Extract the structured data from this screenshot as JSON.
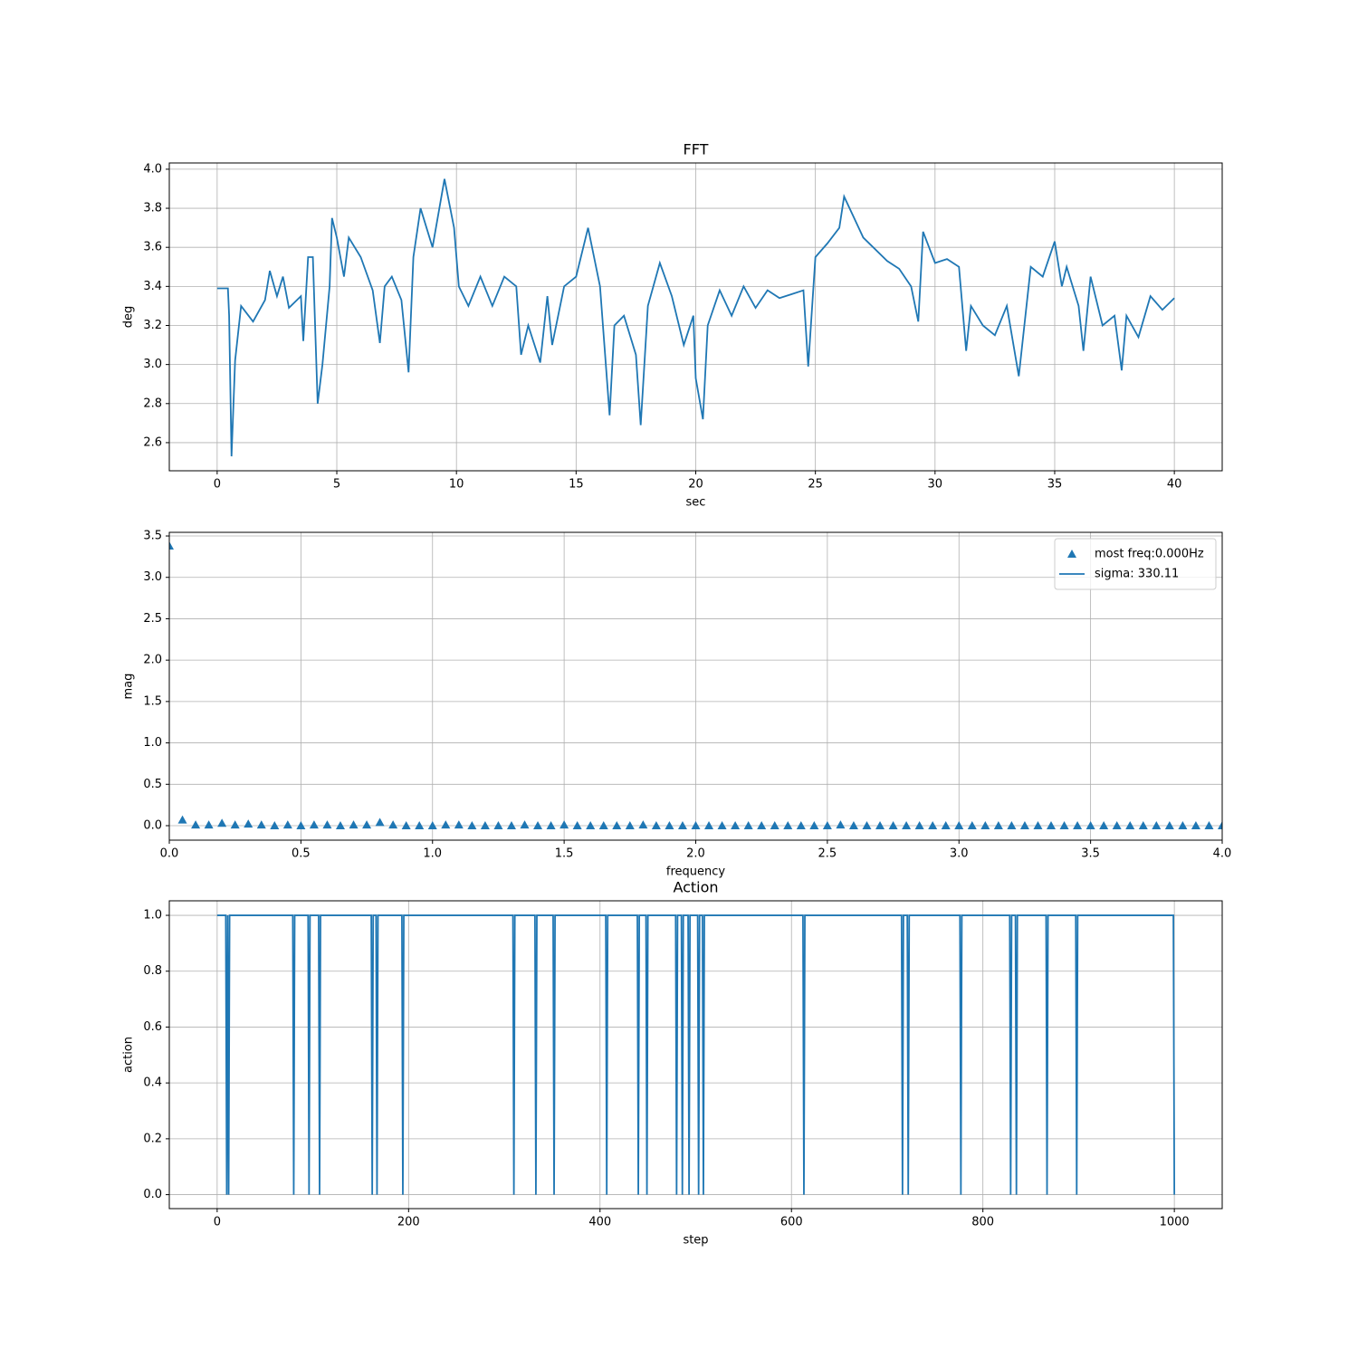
{
  "chart_data": [
    {
      "type": "line",
      "title": "FFT",
      "xlabel": "sec",
      "ylabel": "deg",
      "grid": true,
      "xlim": [
        -2,
        42
      ],
      "ylim": [
        2.456,
        4.032
      ],
      "xticks": [
        0,
        5,
        10,
        15,
        20,
        25,
        30,
        35,
        40
      ],
      "yticks": [
        {
          "value": 2.6,
          "label": "2.6"
        },
        {
          "value": 2.8,
          "label": "2.8"
        },
        {
          "value": 3.0,
          "label": "3.0"
        },
        {
          "value": 3.2,
          "label": "3.2"
        },
        {
          "value": 3.4,
          "label": "3.4"
        },
        {
          "value": 3.6,
          "label": "3.6"
        },
        {
          "value": 3.8,
          "label": "3.8"
        },
        {
          "value": 4.0,
          "label": "4.0"
        }
      ],
      "x": [
        0,
        0.45,
        0.5,
        0.6,
        0.75,
        1.0,
        1.5,
        2.0,
        2.2,
        2.5,
        2.75,
        3.0,
        3.5,
        3.6,
        3.8,
        4.0,
        4.2,
        4.4,
        4.7,
        4.8,
        5.0,
        5.3,
        5.5,
        6.0,
        6.5,
        6.8,
        7.0,
        7.3,
        7.7,
        8.0,
        8.2,
        8.5,
        9.0,
        9.5,
        9.9,
        10.1,
        10.5,
        11.0,
        11.5,
        12.0,
        12.5,
        12.7,
        13.0,
        13.5,
        13.8,
        14.0,
        14.5,
        15.0,
        15.5,
        16.0,
        16.4,
        16.6,
        17.0,
        17.5,
        17.7,
        18.0,
        18.5,
        19.0,
        19.5,
        19.9,
        20.0,
        20.3,
        20.5,
        21.0,
        21.5,
        22.0,
        22.5,
        23.0,
        23.5,
        24.0,
        24.5,
        24.7,
        25.0,
        25.5,
        26.0,
        26.2,
        27.0,
        28.0,
        28.5,
        29.0,
        29.3,
        29.5,
        30.0,
        30.5,
        31.0,
        31.3,
        31.5,
        32.0,
        32.5,
        33.0,
        33.5,
        34.0,
        34.5,
        35.0,
        35.3,
        35.5,
        36.0,
        36.2,
        36.5,
        37.0,
        37.5,
        37.8,
        38.0,
        38.5,
        39.0,
        39.5,
        40.0
      ],
      "series": [
        {
          "color": "#1f77b4",
          "values": [
            3.39,
            3.39,
            3.25,
            2.53,
            3.02,
            3.3,
            3.22,
            3.33,
            3.48,
            3.35,
            3.45,
            3.29,
            3.35,
            3.12,
            3.55,
            3.55,
            2.8,
            3.0,
            3.4,
            3.75,
            3.65,
            3.45,
            3.65,
            3.55,
            3.38,
            3.11,
            3.4,
            3.45,
            3.33,
            2.96,
            3.55,
            3.8,
            3.6,
            3.95,
            3.7,
            3.4,
            3.3,
            3.45,
            3.3,
            3.45,
            3.4,
            3.05,
            3.2,
            3.01,
            3.35,
            3.1,
            3.4,
            3.45,
            3.7,
            3.4,
            2.74,
            3.2,
            3.25,
            3.05,
            2.69,
            3.3,
            3.52,
            3.35,
            3.1,
            3.25,
            2.93,
            2.72,
            3.2,
            3.38,
            3.25,
            3.4,
            3.29,
            3.38,
            3.34,
            3.36,
            3.38,
            2.99,
            3.55,
            3.62,
            3.7,
            3.86,
            3.65,
            3.53,
            3.49,
            3.4,
            3.22,
            3.68,
            3.52,
            3.54,
            3.5,
            3.07,
            3.3,
            3.2,
            3.15,
            3.3,
            2.94,
            3.5,
            3.45,
            3.63,
            3.4,
            3.5,
            3.3,
            3.07,
            3.45,
            3.2,
            3.25,
            2.97,
            3.25,
            3.14,
            3.35,
            3.28,
            3.34
          ]
        }
      ]
    },
    {
      "type": "scatter",
      "xlabel": "frequency",
      "ylabel": "mag",
      "grid": true,
      "legend": "upper right",
      "xlim": [
        0,
        4
      ],
      "ylim": [
        -0.175,
        3.544
      ],
      "xticks": [
        {
          "value": 0,
          "label": "0.0"
        },
        0.5,
        {
          "value": 1,
          "label": "1.0"
        },
        1.5,
        {
          "value": 2,
          "label": "2.0"
        },
        2.5,
        {
          "value": 3,
          "label": "3.0"
        },
        3.5,
        {
          "value": 4,
          "label": "4.0"
        }
      ],
      "yticks": [
        {
          "value": 0,
          "label": "0.0"
        },
        0.5,
        {
          "value": 1,
          "label": "1.0"
        },
        1.5,
        {
          "value": 2,
          "label": "2.0"
        },
        2.5,
        {
          "value": 3,
          "label": "3.0"
        },
        3.5
      ],
      "x": [
        0,
        0.05,
        0.1,
        0.15,
        0.2,
        0.25,
        0.3,
        0.35,
        0.4,
        0.45,
        0.5,
        0.55,
        0.6,
        0.65,
        0.7,
        0.75,
        0.8,
        0.85,
        0.9,
        0.95,
        1.0,
        1.05,
        1.1,
        1.15,
        1.2,
        1.25,
        1.3,
        1.35,
        1.4,
        1.45,
        1.5,
        1.55,
        1.6,
        1.65,
        1.7,
        1.75,
        1.8,
        1.85,
        1.9,
        1.95,
        2.0,
        2.05,
        2.1,
        2.15,
        2.2,
        2.25,
        2.3,
        2.35,
        2.4,
        2.45,
        2.5,
        2.55,
        2.6,
        2.65,
        2.7,
        2.75,
        2.8,
        2.85,
        2.9,
        2.95,
        3.0,
        3.05,
        3.1,
        3.15,
        3.2,
        3.25,
        3.3,
        3.35,
        3.4,
        3.45,
        3.5,
        3.55,
        3.6,
        3.65,
        3.7,
        3.75,
        3.8,
        3.85,
        3.9,
        3.95,
        4.0
      ],
      "series": [
        {
          "name": "most freq:0.000Hz",
          "color": "#1f77b4",
          "marker": "triangle",
          "values": [
            3.38,
            0.07,
            0.01,
            0.01,
            0.03,
            0.01,
            0.02,
            0.01,
            0.0,
            0.01,
            0.0,
            0.01,
            0.01,
            0.0,
            0.01,
            0.01,
            0.04,
            0.01,
            0.0,
            0.0,
            0.0,
            0.01,
            0.01,
            0.0,
            0.0,
            0.0,
            0.0,
            0.01,
            0.0,
            0.0,
            0.01,
            0.0,
            0.0,
            0.0,
            0.0,
            0.0,
            0.01,
            0.0,
            0.0,
            0.0,
            0.0,
            0.0,
            0.0,
            0.0,
            0.0,
            0.0,
            0.0,
            0.0,
            0.0,
            0.0,
            0.0,
            0.01,
            0.0,
            0.0,
            0.0,
            0.0,
            0.0,
            0.0,
            0.0,
            0.0,
            0.0,
            0.0,
            0.0,
            0.0,
            0.0,
            0.0,
            0.0,
            0.0,
            0.0,
            0.0,
            0.0,
            0.0,
            0.0,
            0.0,
            0.0,
            0.0,
            0.0,
            0.0,
            0.0,
            0.0,
            0.0
          ]
        },
        {
          "name": "sigma: 330.11",
          "color": "#1f77b4",
          "marker": "line"
        }
      ]
    },
    {
      "type": "line",
      "title": "Action",
      "xlabel": "step",
      "ylabel": "action",
      "grid": true,
      "xlim": [
        -50,
        1050
      ],
      "ylim": [
        -0.05,
        1.052
      ],
      "xticks": [
        0,
        200,
        400,
        600,
        800,
        1000
      ],
      "yticks": [
        {
          "value": 0,
          "label": "0.0"
        },
        0.2,
        0.4,
        0.6,
        0.8,
        {
          "value": 1,
          "label": "1.0"
        }
      ],
      "x": [
        0,
        9,
        10,
        11,
        12,
        13,
        79,
        80,
        81,
        95,
        96,
        97,
        106,
        107,
        108,
        161,
        162,
        163,
        166,
        167,
        168,
        193,
        194,
        195,
        309,
        310,
        311,
        332,
        333,
        334,
        351,
        352,
        353,
        406,
        407,
        408,
        439,
        440,
        441,
        448,
        449,
        450,
        479,
        480,
        481,
        485,
        486,
        487,
        492,
        493,
        494,
        502,
        503,
        504,
        507,
        508,
        509,
        612,
        613,
        614,
        715,
        716,
        717,
        721,
        722,
        723,
        776,
        777,
        778,
        828,
        829,
        830,
        834,
        835,
        836,
        866,
        867,
        868,
        897,
        898,
        899,
        999,
        1000
      ],
      "series": [
        {
          "color": "#1f77b4",
          "values": [
            1,
            1,
            0,
            1,
            0,
            1,
            1,
            0,
            1,
            1,
            0,
            1,
            1,
            0,
            1,
            1,
            0,
            1,
            1,
            0,
            1,
            1,
            0,
            1,
            1,
            0,
            1,
            1,
            0,
            1,
            1,
            0,
            1,
            1,
            0,
            1,
            1,
            0,
            1,
            1,
            0,
            1,
            1,
            0,
            1,
            1,
            0,
            1,
            1,
            0,
            1,
            1,
            0,
            1,
            1,
            0,
            1,
            1,
            0,
            1,
            1,
            0,
            1,
            1,
            0,
            1,
            1,
            0,
            1,
            1,
            0,
            1,
            1,
            0,
            1,
            1,
            0,
            1,
            1,
            0,
            1,
            1,
            0
          ]
        }
      ]
    }
  ]
}
